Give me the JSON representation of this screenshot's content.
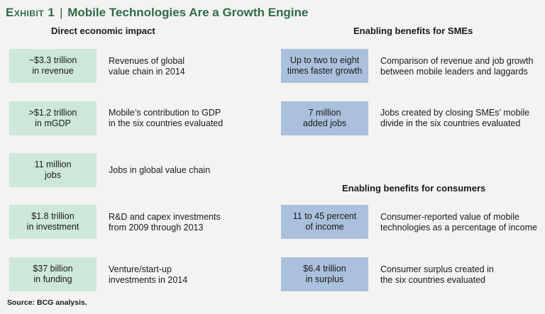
{
  "title": {
    "exhibit": "Exhibit 1",
    "separator": "|",
    "text": "Mobile Technologies Are a Growth Engine"
  },
  "colors": {
    "title": "#2e6b47",
    "green_box": "#cde8d8",
    "blue_box": "#aac0dc",
    "background": "#f3f3f2"
  },
  "left": {
    "heading": "Direct economic impact",
    "items": [
      {
        "box": "~$3.3 trillion\nin revenue",
        "desc": "Revenues of global\nvalue chain in 2014"
      },
      {
        "box": ">$1.2 trillion\nin mGDP",
        "desc": "Mobile’s contribution to GDP\nin the six countries evaluated"
      },
      {
        "box": "11 million\njobs",
        "desc": "Jobs in global value chain"
      },
      {
        "box": "$1.8 trillion\nin investment",
        "desc": "R&D and capex investments\nfrom 2009 through 2013"
      },
      {
        "box": "$37 billion\nin funding",
        "desc": "Venture/start-up\ninvestments in 2014"
      }
    ]
  },
  "right_smes": {
    "heading": "Enabling benefits for SMEs",
    "items": [
      {
        "box": "Up to two to eight\ntimes faster growth",
        "desc": "Comparison of revenue and job growth\nbetween mobile leaders and laggards"
      },
      {
        "box": "7 million\nadded jobs",
        "desc": "Jobs created by closing SMEs’ mobile\ndivide in the six countries evaluated"
      }
    ]
  },
  "right_consumers": {
    "heading": "Enabling benefits for consumers",
    "items": [
      {
        "box": "11 to 45 percent\nof income",
        "desc": "Consumer-reported value of mobile\ntechnologies as a percentage of income"
      },
      {
        "box": "$6.4 trillion\nin surplus",
        "desc": "Consumer surplus created in\nthe six countries evaluated"
      }
    ]
  },
  "source": "Source: BCG analysis."
}
